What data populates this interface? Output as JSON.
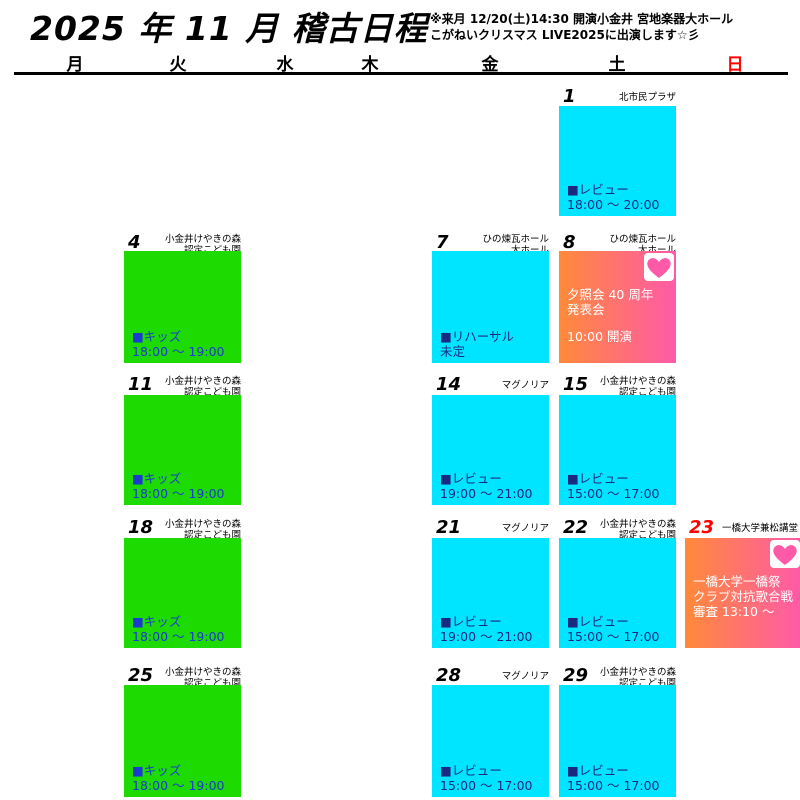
{
  "header": {
    "title": "2025 年 11 月 稽古日程",
    "notes": [
      "※来月 12/20(土)14:30 開演小金井 宮地楽器大ホール",
      "こがねいクリスマス LIVE2025に出演します☆彡"
    ]
  },
  "weekdays": [
    "月",
    "火",
    "水",
    "木",
    "金",
    "土",
    "日"
  ],
  "events": [
    {
      "day": "1",
      "venue": [
        "北市民プラザ"
      ],
      "lines": [
        "■レビュー",
        "18:00 ～ 20:00"
      ],
      "color": "#00e5ff",
      "text_color": "#1a2a80"
    },
    {
      "day": "4",
      "venue": [
        "小金井けやきの森",
        "認定こども園"
      ],
      "lines": [
        "■キッズ",
        "18:00 ～ 19:00"
      ],
      "color": "#1ddb00",
      "text_color": "#1a3ad0"
    },
    {
      "day": "7",
      "venue": [
        "ひの煉瓦ホール",
        "大ホール"
      ],
      "lines": [
        "■リハーサル",
        "未定"
      ],
      "color": "#00e5ff",
      "text_color": "#1a2a80"
    },
    {
      "day": "8",
      "venue": [
        "ひの煉瓦ホール",
        "大ホール"
      ],
      "lines": [
        "夕照会 40 周年",
        "発表会",
        "10:00 開演"
      ],
      "color": [
        "#ff8a3a",
        "#ff5aa8"
      ],
      "text_color": "#ffffff"
    },
    {
      "day": "11",
      "venue": [
        "小金井けやきの森",
        "認定こども園"
      ],
      "lines": [
        "■キッズ",
        "18:00 ～ 19:00"
      ],
      "color": "#1ddb00",
      "text_color": "#1a3ad0"
    },
    {
      "day": "14",
      "venue": [
        "マグノリア"
      ],
      "lines": [
        "■レビュー",
        "19:00 ～ 21:00"
      ],
      "color": "#00e5ff",
      "text_color": "#1a2a80"
    },
    {
      "day": "15",
      "venue": [
        "小金井けやきの森",
        "認定こども園"
      ],
      "lines": [
        "■レビュー",
        "15:00 ～ 17:00"
      ],
      "color": "#00e5ff",
      "text_color": "#1a2a80"
    },
    {
      "day": "18",
      "venue": [
        "小金井けやきの森",
        "認定こども園"
      ],
      "lines": [
        "■キッズ",
        "18:00 ～ 19:00"
      ],
      "color": "#1ddb00",
      "text_color": "#1a3ad0"
    },
    {
      "day": "21",
      "venue": [
        "マグノリア"
      ],
      "lines": [
        "■レビュー",
        "19:00 ～ 21:00"
      ],
      "color": "#00e5ff",
      "text_color": "#1a2a80"
    },
    {
      "day": "22",
      "venue": [
        "小金井けやきの森",
        "認定こども園"
      ],
      "lines": [
        "■レビュー",
        "15:00 ～ 17:00"
      ],
      "color": "#00e5ff",
      "text_color": "#1a2a80"
    },
    {
      "day": "23",
      "venue": [
        "一橋大学兼松講堂"
      ],
      "lines": [
        "一橋大学一橋祭",
        "クラブ対抗歌合戦",
        "審査 13:10 ～"
      ],
      "color": [
        "#ff8a3a",
        "#ff5aa8"
      ],
      "text_color": "#ffffff"
    },
    {
      "day": "25",
      "venue": [
        "小金井けやきの森",
        "認定こども園"
      ],
      "lines": [
        "■キッズ",
        "18:00 ～ 19:00"
      ],
      "color": "#1ddb00",
      "text_color": "#1a3ad0"
    },
    {
      "day": "28",
      "venue": [
        "マグノリア"
      ],
      "lines": [
        "■レビュー",
        "15:00 ～ 17:00"
      ],
      "color": "#00e5ff",
      "text_color": "#1a2a80"
    },
    {
      "day": "29",
      "venue": [
        "小金井けやきの森",
        "認定こども園"
      ],
      "lines": [
        "■レビュー",
        "15:00 ～ 17:00"
      ],
      "color": "#00e5ff",
      "text_color": "#1a2a80"
    }
  ]
}
